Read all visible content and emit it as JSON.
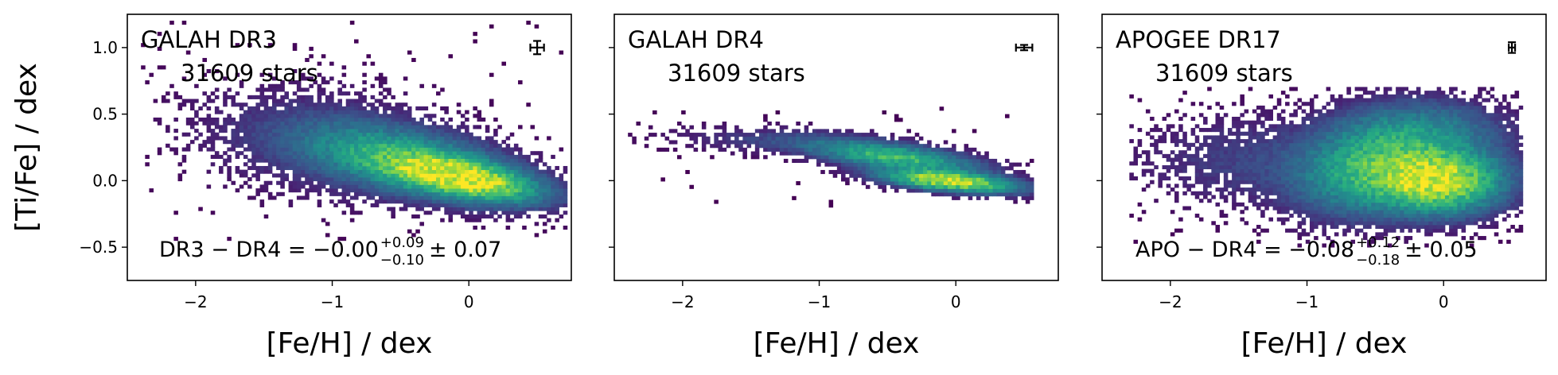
{
  "chart_data": [
    {
      "type": "heatmap",
      "title": "GALAH DR3",
      "count_label": "31609 stars",
      "stat": {
        "prefix": "DR3 − DR4 = −",
        "value": "0.00",
        "sup": "+0.09",
        "sub": "−0.10",
        "suffix": "± 0.07"
      },
      "xlabel": "[Fe/H] / dex",
      "ylabel": "[Ti/Fe] / dex",
      "xlim": [
        -2.5,
        0.75
      ],
      "ylim": [
        -0.75,
        1.25
      ],
      "xticks": [
        -2,
        -1,
        0
      ],
      "xtick_labels": [
        "−2",
        "−1",
        "0"
      ],
      "yticks": [
        -0.5,
        0.0,
        0.5,
        1.0
      ],
      "ytick_labels": [
        "−0.5",
        "0.0",
        "0.5",
        "1.0"
      ],
      "errorbar": {
        "x": 0.5,
        "y": 1.0,
        "xerr": 0.05,
        "yerr": 0.05
      },
      "density_model": {
        "x_range": [
          -2.4,
          0.7
        ],
        "y_range": [
          -0.45,
          1.2
        ],
        "blobs": [
          {
            "cx": -0.05,
            "cy": 0.02,
            "sx": 0.32,
            "sy": 0.1,
            "rho": -0.55,
            "amp": 1.0
          },
          {
            "cx": -0.45,
            "cy": 0.15,
            "sx": 0.45,
            "sy": 0.16,
            "rho": -0.5,
            "amp": 0.5
          },
          {
            "cx": -1.1,
            "cy": 0.3,
            "sx": 0.55,
            "sy": 0.25,
            "rho": -0.2,
            "amp": 0.06
          }
        ]
      }
    },
    {
      "type": "heatmap",
      "title": "GALAH DR4",
      "count_label": "31609 stars",
      "stat": null,
      "xlabel": "[Fe/H] / dex",
      "ylabel": "",
      "xlim": [
        -2.5,
        0.75
      ],
      "ylim": [
        -0.75,
        1.25
      ],
      "xticks": [
        -2,
        -1,
        0
      ],
      "xtick_labels": [
        "−2",
        "−1",
        "0"
      ],
      "yticks": [
        -0.5,
        0.0,
        0.5,
        1.0
      ],
      "ytick_labels": [],
      "errorbar": {
        "x": 0.5,
        "y": 1.0,
        "xerr": 0.06,
        "yerr": 0.02
      },
      "density_model": {
        "x_range": [
          -2.4,
          0.55
        ],
        "y_range": [
          -0.2,
          0.55
        ],
        "blobs": [
          {
            "cx": -0.05,
            "cy": 0.0,
            "sx": 0.28,
            "sy": 0.05,
            "rho": -0.5,
            "amp": 1.0
          },
          {
            "cx": -0.45,
            "cy": 0.18,
            "sx": 0.35,
            "sy": 0.07,
            "rho": -0.6,
            "amp": 0.55
          },
          {
            "cx": -1.2,
            "cy": 0.3,
            "sx": 0.5,
            "sy": 0.06,
            "rho": -0.3,
            "amp": 0.07
          }
        ]
      }
    },
    {
      "type": "heatmap",
      "title": "APOGEE DR17",
      "count_label": "31609 stars",
      "stat": {
        "prefix": "APO − DR4 = −",
        "value": "0.08",
        "sup": "+0.12",
        "sub": "−0.18",
        "suffix": "± 0.05"
      },
      "xlabel": "[Fe/H] / dex",
      "ylabel": "",
      "xlim": [
        -2.5,
        0.75
      ],
      "ylim": [
        -0.75,
        1.25
      ],
      "xticks": [
        -2,
        -1,
        0
      ],
      "xtick_labels": [
        "−2",
        "−1",
        "0"
      ],
      "yticks": [
        -0.5,
        0.0,
        0.5,
        1.0
      ],
      "ytick_labels": [],
      "errorbar": {
        "x": 0.5,
        "y": 1.0,
        "xerr": 0.02,
        "yerr": 0.04
      },
      "density_model": {
        "x_range": [
          -2.3,
          0.55
        ],
        "y_range": [
          -0.5,
          0.7
        ],
        "blobs": [
          {
            "cx": -0.05,
            "cy": 0.0,
            "sx": 0.28,
            "sy": 0.14,
            "rho": 0.0,
            "amp": 1.0
          },
          {
            "cx": -0.55,
            "cy": 0.1,
            "sx": 0.3,
            "sy": 0.2,
            "rho": 0.2,
            "amp": 0.45
          },
          {
            "cx": -0.15,
            "cy": 0.35,
            "sx": 0.35,
            "sy": 0.15,
            "rho": 0.0,
            "amp": 0.25
          },
          {
            "cx": -1.3,
            "cy": 0.15,
            "sx": 0.55,
            "sy": 0.2,
            "rho": 0.0,
            "amp": 0.07
          }
        ]
      }
    }
  ]
}
